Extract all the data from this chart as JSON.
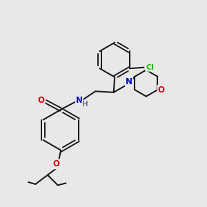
{
  "background_color": "#e8e8e8",
  "bond_color": "#1a1a1a",
  "atom_colors": {
    "O": "#dd0000",
    "N": "#0000dd",
    "Cl": "#22bb00",
    "C": "#1a1a1a",
    "H": "#777777"
  }
}
